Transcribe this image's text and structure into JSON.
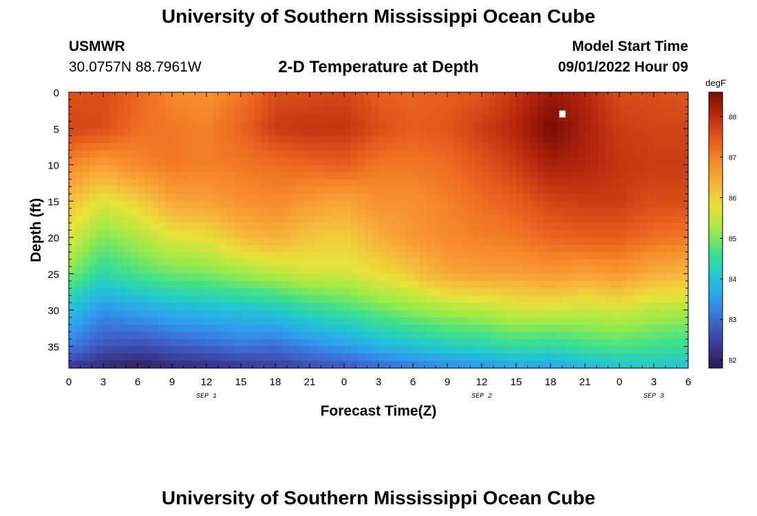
{
  "page": {
    "title_top": "University of Southern Mississippi Ocean Cube",
    "title_bottom": "University of Southern Mississippi Ocean Cube",
    "station_id": "USMWR",
    "station_coords": "30.0757N  88.7961W",
    "plot_title": "2-D Temperature at Depth",
    "model_label": "Model Start Time",
    "model_time": "09/01/2022 Hour 09"
  },
  "colors": {
    "scale": [
      "#2a1a4e",
      "#3b3a94",
      "#3f66d0",
      "#2f9cf0",
      "#22c7d0",
      "#3fe08a",
      "#9eea48",
      "#e8e23a",
      "#f7b33c",
      "#f7892a",
      "#e4571c",
      "#b82a0e",
      "#7a0a04"
    ]
  },
  "chart_data": {
    "type": "heatmap",
    "title": "2-D Temperature at Depth",
    "xlabel": "Forecast Time(Z)",
    "ylabel": "Depth (ft)",
    "x_range": [
      0,
      54
    ],
    "x_ticks": [
      0,
      3,
      6,
      9,
      12,
      15,
      18,
      21,
      24,
      27,
      30,
      33,
      36,
      39,
      42,
      45,
      48,
      51,
      54
    ],
    "x_tick_labels": [
      "0",
      "3",
      "6",
      "9",
      "12",
      "15",
      "18",
      "21",
      "0",
      "3",
      "6",
      "9",
      "12",
      "15",
      "18",
      "21",
      "0",
      "3",
      "6"
    ],
    "date_labels": [
      {
        "text": "SEP 1",
        "x": 12
      },
      {
        "text": "SEP 2",
        "x": 36
      },
      {
        "text": "SEP 3",
        "x": 51
      }
    ],
    "y_range": [
      0,
      38
    ],
    "y_reversed": true,
    "y_ticks": [
      0,
      5,
      10,
      15,
      20,
      25,
      30,
      35
    ],
    "y_tick_labels": [
      "0",
      "5",
      "10",
      "15",
      "20",
      "25",
      "30",
      "35"
    ],
    "colorbar": {
      "unit": "degF",
      "min": 81.8,
      "max": 88.6,
      "ticks": [
        82,
        83,
        84,
        85,
        86,
        87,
        88
      ],
      "tick_labels": [
        "82",
        "83",
        "84",
        "85",
        "86",
        "87",
        "88"
      ]
    },
    "profile_depths_ft": [
      0,
      5,
      10,
      15,
      20,
      25,
      30,
      35,
      38
    ],
    "profile_times_hr": [
      0,
      3,
      6,
      9,
      12,
      15,
      18,
      21,
      24,
      27,
      30,
      33,
      36,
      39,
      42,
      45,
      48,
      51,
      54
    ],
    "values_degF": [
      [
        87.5,
        87.7,
        86.9,
        86.2,
        85.7,
        85.0,
        84.0,
        83.2,
        82.3
      ],
      [
        87.6,
        87.6,
        86.6,
        85.7,
        85.0,
        84.4,
        83.4,
        82.7,
        82.1
      ],
      [
        87.3,
        87.2,
        86.9,
        86.0,
        85.3,
        84.7,
        83.6,
        82.6,
        81.9
      ],
      [
        86.9,
        87.1,
        87.1,
        86.5,
        85.7,
        84.9,
        83.8,
        82.8,
        82.1
      ],
      [
        86.8,
        87.0,
        87.0,
        86.6,
        85.8,
        85.0,
        83.9,
        82.9,
        82.2
      ],
      [
        87.1,
        87.3,
        87.1,
        86.8,
        86.2,
        85.2,
        84.0,
        83.1,
        82.3
      ],
      [
        87.6,
        87.8,
        87.2,
        86.9,
        86.4,
        85.4,
        84.1,
        83.0,
        82.4
      ],
      [
        87.6,
        87.9,
        87.3,
        86.7,
        86.1,
        85.6,
        84.4,
        83.3,
        82.6
      ],
      [
        87.7,
        87.9,
        87.4,
        86.5,
        86.0,
        85.6,
        84.6,
        83.5,
        82.7
      ],
      [
        87.4,
        87.6,
        87.1,
        86.8,
        86.4,
        85.8,
        84.9,
        83.8,
        82.9
      ],
      [
        87.3,
        87.4,
        87.1,
        86.8,
        86.7,
        86.1,
        85.1,
        84.0,
        83.1
      ],
      [
        87.4,
        87.5,
        87.2,
        87.0,
        86.9,
        86.5,
        85.3,
        84.2,
        83.3
      ],
      [
        87.5,
        87.8,
        87.5,
        87.2,
        87.0,
        86.6,
        85.4,
        84.3,
        83.4
      ],
      [
        87.9,
        88.1,
        87.8,
        87.4,
        87.1,
        86.6,
        85.6,
        84.5,
        83.6
      ],
      [
        88.3,
        88.6,
        88.2,
        87.7,
        87.3,
        86.7,
        85.6,
        84.4,
        83.6
      ],
      [
        88.1,
        88.2,
        88.1,
        87.8,
        87.4,
        86.6,
        85.5,
        84.6,
        83.8
      ],
      [
        87.6,
        87.8,
        87.9,
        87.8,
        87.4,
        86.7,
        85.6,
        84.7,
        84.0
      ],
      [
        87.6,
        87.7,
        87.8,
        87.6,
        87.2,
        86.4,
        85.4,
        84.6,
        84.1
      ],
      [
        87.5,
        87.7,
        87.8,
        87.6,
        87.1,
        86.3,
        85.3,
        84.5,
        84.0
      ]
    ],
    "marker": {
      "time_hr": 43.0,
      "depth_ft": 3.0
    }
  }
}
